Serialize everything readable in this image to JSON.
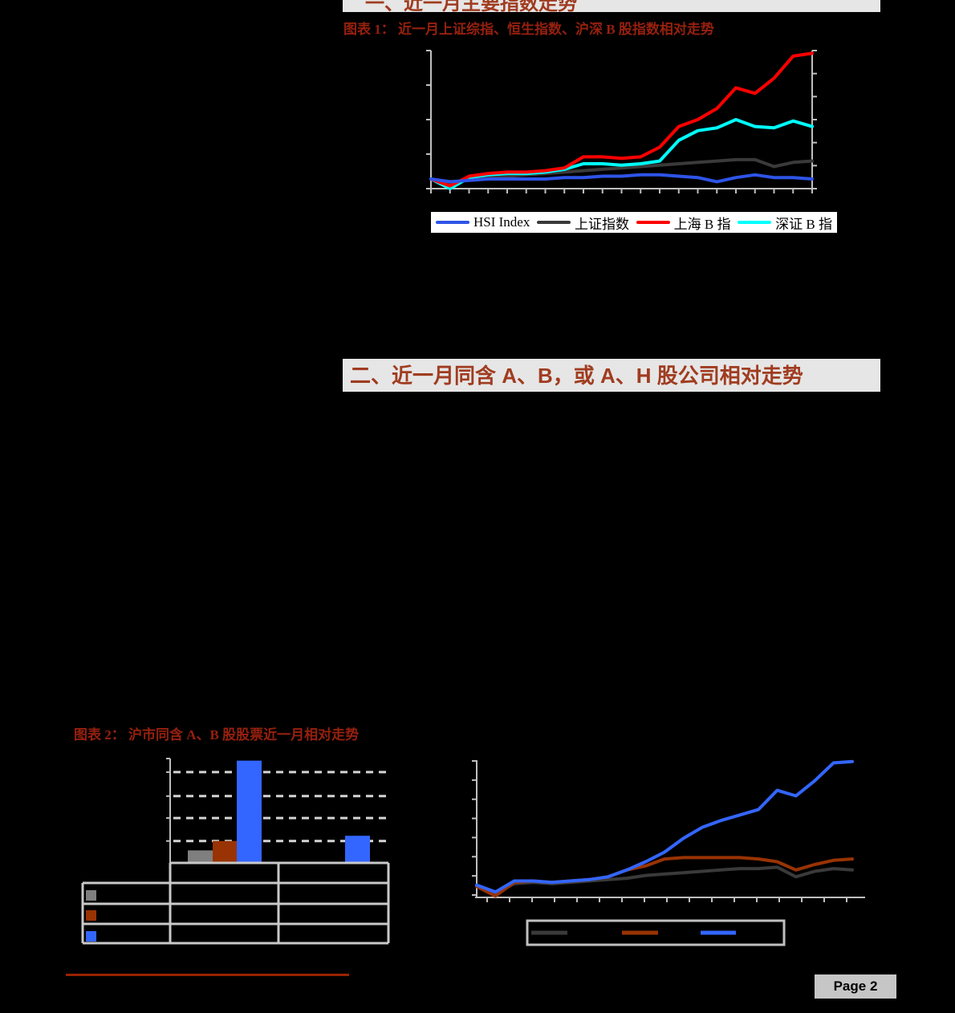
{
  "page": {
    "background": "#000000",
    "page_label": "Page 2"
  },
  "colors": {
    "header_bg": "#E6E6E6",
    "header_text": "#A03C20",
    "caption_text": "#96200E",
    "axis": "#BFBFBF",
    "grid_dash": "#D4D4D4",
    "table_line": "#C9C9C9",
    "legend2_border": "#C0C0C0",
    "footer_rule": "#992200",
    "page_box_bg": "#C6C6C6",
    "hsi_blue": "#2E54E8",
    "sse_dark": "#3A3A3A",
    "shb_red": "#FF0000",
    "szb_cyan": "#00FFFF",
    "bar_gray": "#7F7F7F",
    "bar_darkred": "#993303",
    "bar_blue": "#3366FF"
  },
  "section1": {
    "header": "一、近一月主要指数走势",
    "caption": "图表 1： 近一月上证综指、恒生指数、沪深 B 股指数相对走势"
  },
  "section2": {
    "header": "二、近一月同含 A、B，或 A、H 股公司相对走势",
    "caption": "图表 2： 沪市同含 A、B 股股票近一月相对走势"
  },
  "legend1": {
    "items": [
      {
        "label": "HSI Index",
        "color": "#2E54E8"
      },
      {
        "label": "上证指数",
        "color": "#3A3A3A"
      },
      {
        "label": "上海 B 指",
        "color": "#FF0000"
      },
      {
        "label": "深证 B 指",
        "color": "#00FFFF"
      }
    ]
  },
  "chart_data": [
    {
      "id": "figure1-index-relative-line-chart",
      "type": "line",
      "title": "近一月上证综指、恒生指数、沪深B股指数相对走势",
      "axis_tick_labels_visible": false,
      "value_scale_note": "axis numerals not rendered in source; values normalized 0-100 of plot height",
      "x_point_count": 21,
      "legend_position": "bottom-box",
      "series": [
        {
          "name": "HSI Index",
          "color": "#2E54E8",
          "values": [
            7,
            5,
            6,
            7,
            7,
            7,
            7,
            8,
            8,
            9,
            9,
            10,
            10,
            9,
            8,
            5,
            8,
            10,
            8,
            8,
            7
          ]
        },
        {
          "name": "上证指数",
          "color": "#3A3A3A",
          "values": [
            7,
            3,
            7,
            9,
            9,
            10,
            11,
            12,
            13,
            14,
            15,
            16,
            17,
            18,
            19,
            20,
            21,
            21,
            16,
            19,
            20
          ]
        },
        {
          "name": "上海 B 指",
          "color": "#FF0000",
          "values": [
            7,
            2,
            9,
            11,
            12,
            12,
            13,
            15,
            23,
            23,
            22,
            23,
            30,
            45,
            50,
            58,
            73,
            69,
            80,
            96,
            98
          ]
        },
        {
          "name": "深证 B 指",
          "color": "#00FFFF",
          "values": [
            7,
            0,
            8,
            10,
            11,
            11,
            12,
            14,
            18,
            18,
            17,
            18,
            20,
            35,
            42,
            44,
            50,
            45,
            44,
            49,
            45
          ]
        }
      ]
    },
    {
      "id": "figure2-left-bar-chart",
      "type": "bar",
      "title": "沪市同含A、B股股票近一月相对走势（左侧柱图）",
      "category_labels_visible": false,
      "value_labels_visible": false,
      "gridline_values": [
        21,
        43,
        64,
        87
      ],
      "value_scale_note": "axis numerals not rendered in source; values normalized 0-100 of plot height",
      "categories": [
        "",
        ""
      ],
      "series": [
        {
          "name": "",
          "label_visible": false,
          "color": "#7F7F7F",
          "values": [
            12,
            null
          ]
        },
        {
          "name": "",
          "label_visible": false,
          "color": "#993303",
          "values": [
            21,
            null
          ]
        },
        {
          "name": "",
          "label_visible": false,
          "color": "#3366FF",
          "values": [
            98,
            26
          ]
        }
      ],
      "table": {
        "data_rows": 3,
        "data_columns": 2,
        "header_row": true,
        "cell_text_visible": false
      }
    },
    {
      "id": "figure2-right-line-chart",
      "type": "line",
      "title": "沪市同含A、B股股票近一月相对走势（右侧折线图）",
      "axis_tick_labels_visible": false,
      "legend_labels_visible": false,
      "value_scale_note": "axis numerals not rendered in source; values normalized 0-100 of plot height",
      "x_point_count": 21,
      "series": [
        {
          "name": "",
          "label_visible": false,
          "color": "#3A3A3A",
          "values": [
            8,
            3,
            10,
            11,
            10,
            11,
            12,
            13,
            14,
            16,
            17,
            18,
            19,
            20,
            21,
            21,
            22,
            15,
            19,
            21,
            20
          ]
        },
        {
          "name": "",
          "label_visible": false,
          "color": "#993303",
          "values": [
            8,
            1,
            11,
            12,
            11,
            12,
            13,
            15,
            20,
            23,
            28,
            29,
            29,
            29,
            29,
            28,
            26,
            20,
            24,
            27,
            28
          ]
        },
        {
          "name": "",
          "label_visible": false,
          "color": "#3366FF",
          "values": [
            9,
            4,
            12,
            12,
            11,
            12,
            13,
            15,
            20,
            26,
            33,
            43,
            51,
            56,
            60,
            64,
            78,
            74,
            85,
            98,
            99
          ]
        }
      ]
    }
  ]
}
